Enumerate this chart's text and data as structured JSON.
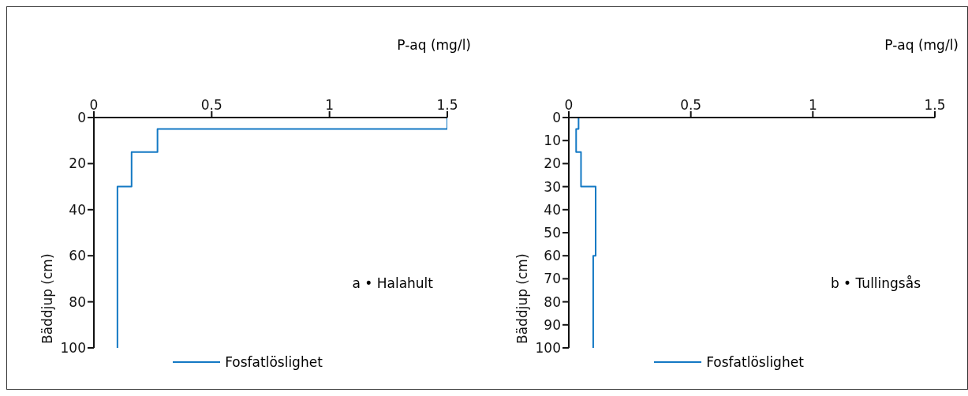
{
  "chart_data": [
    {
      "type": "line",
      "xlabel": "P-aq (mg/l)",
      "ylabel": "Bäddjup (cm)",
      "annotations": [
        "a • Halahult"
      ],
      "xlim": [
        0,
        1.5
      ],
      "xticks": [
        0,
        0.5,
        1,
        1.5
      ],
      "ylim": [
        100,
        0
      ],
      "yticks": [
        0,
        20,
        40,
        60,
        80,
        100
      ],
      "grid": false,
      "legend": "bottom",
      "marker": "none",
      "line_style": "solid",
      "series": [
        {
          "name": "Fosfatlöslighet",
          "color": "#1479c4",
          "x": [
            1.5,
            1.5,
            0.27,
            0.27,
            0.16,
            0.16,
            0.1,
            0.1
          ],
          "values": [
            0,
            5,
            5,
            15,
            15,
            30,
            30,
            100
          ]
        }
      ]
    },
    {
      "type": "line",
      "xlabel": "P-aq (mg/l)",
      "ylabel": "Bäddjup (cm)",
      "annotations": [
        "b • Tullingsås"
      ],
      "xlim": [
        0,
        1.5
      ],
      "xticks": [
        0,
        0.5,
        1,
        1.5
      ],
      "ylim": [
        100,
        0
      ],
      "yticks": [
        0,
        10,
        20,
        30,
        40,
        50,
        60,
        70,
        80,
        90,
        100
      ],
      "grid": false,
      "legend": "bottom",
      "marker": "none",
      "line_style": "solid",
      "series": [
        {
          "name": "Fosfatlöslighet",
          "color": "#1479c4",
          "x": [
            0.04,
            0.04,
            0.03,
            0.03,
            0.05,
            0.05,
            0.11,
            0.11,
            0.1,
            0.1
          ],
          "values": [
            0,
            5,
            5,
            15,
            15,
            30,
            30,
            60,
            60,
            100
          ]
        }
      ]
    }
  ]
}
